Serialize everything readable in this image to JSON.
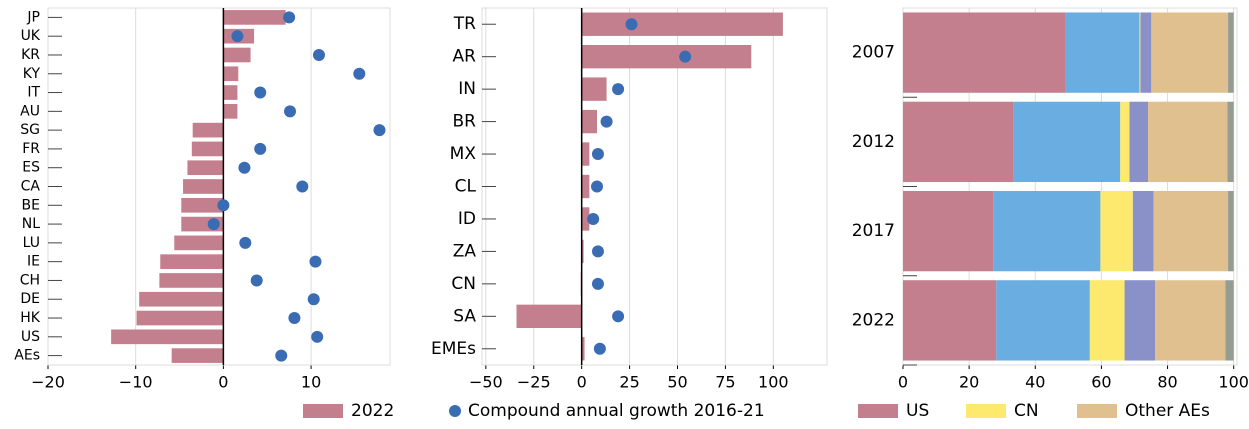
{
  "chart_data": [
    {
      "type": "hbar",
      "categories": [
        "JP",
        "UK",
        "KR",
        "KY",
        "IT",
        "AU",
        "SG",
        "FR",
        "ES",
        "CA",
        "BE",
        "NL",
        "LU",
        "IE",
        "CH",
        "DE",
        "HK",
        "US",
        "AEs"
      ],
      "series": [
        {
          "name": "2022",
          "type": "bar",
          "color": "#c47f8e",
          "values": [
            7.1,
            3.5,
            3.1,
            1.7,
            1.6,
            1.6,
            -3.5,
            -3.6,
            -4.1,
            -4.6,
            -4.8,
            -4.8,
            -5.6,
            -7.2,
            -7.3,
            -9.6,
            -9.9,
            -12.8,
            -5.9
          ]
        },
        {
          "name": "Compound annual growth 2016-21",
          "type": "scatter",
          "color": "#3a6cb4",
          "values": [
            7.5,
            1.6,
            10.9,
            15.5,
            4.2,
            7.6,
            17.8,
            4.2,
            2.4,
            9.0,
            0,
            -1.1,
            2.5,
            10.5,
            3.8,
            10.3,
            8.1,
            10.7,
            6.6
          ]
        }
      ],
      "xlim": [
        -20,
        19
      ],
      "xticks": [
        {
          "value": -20,
          "label": "−20"
        },
        {
          "value": -10,
          "label": "−10"
        },
        0,
        10
      ],
      "grid": true
    },
    {
      "type": "hbar",
      "categories": [
        "TR",
        "AR",
        "IN",
        "BR",
        "MX",
        "CL",
        "ID",
        "ZA",
        "CN",
        "SA",
        "EMEs"
      ],
      "series": [
        {
          "type": "bar",
          "color": "#c47f8e",
          "values": [
            105,
            88.5,
            13,
            8,
            4,
            4,
            4,
            1,
            -0.5,
            -34,
            1.5
          ]
        },
        {
          "type": "scatter",
          "color": "#3a6cb4",
          "values": [
            26,
            54,
            19,
            13,
            8.5,
            8,
            6,
            8.5,
            8.5,
            19,
            9.5
          ]
        }
      ],
      "xlim": [
        -52,
        128
      ],
      "xticks": [
        {
          "value": -50,
          "label": "−50"
        },
        {
          "value": -25,
          "label": "−25"
        },
        0,
        25,
        50,
        75,
        100
      ],
      "grid": true
    },
    {
      "type": "stacked_hbar",
      "categories": [
        "2007",
        "2012",
        "2017",
        "2022"
      ],
      "series": [
        {
          "name": "US",
          "color": "#c47f8e",
          "values": [
            49,
            33.5,
            27.3,
            28.2
          ]
        },
        {
          "color": "#6aade0",
          "values": [
            22.5,
            32.2,
            32.4,
            28.3
          ]
        },
        {
          "name": "CN",
          "color": "#fce96e",
          "values": [
            0.3,
            2.8,
            9.8,
            10.5
          ]
        },
        {
          "color": "#8a90c8",
          "values": [
            3.3,
            5.6,
            6.3,
            9.2
          ]
        },
        {
          "name": "Other AEs",
          "color": "#e0c08e",
          "values": [
            23.2,
            24,
            22.5,
            21.3
          ]
        },
        {
          "color": "#959c92",
          "values": [
            1.7,
            1.9,
            1.7,
            2.5
          ]
        }
      ],
      "xlim": [
        0,
        101
      ],
      "xticks": [
        0,
        20,
        40,
        60,
        80,
        100
      ],
      "grid": true
    }
  ]
}
